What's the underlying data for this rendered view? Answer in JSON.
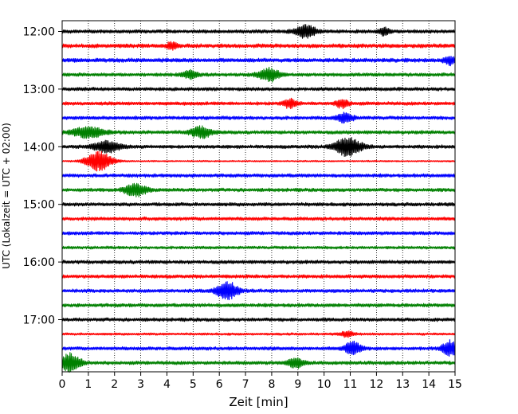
{
  "chart_data": {
    "type": "line",
    "title": "",
    "xlabel": "Zeit  [min]",
    "ylabel": "UTC (Lokalzeit = UTC + 02:00)",
    "xlim": [
      0,
      15
    ],
    "x_ticks": [
      0,
      1,
      2,
      3,
      4,
      5,
      6,
      7,
      8,
      9,
      10,
      11,
      12,
      13,
      14,
      15
    ],
    "y_ticks": [
      {
        "label": "12:00",
        "trace": 0
      },
      {
        "label": "13:00",
        "trace": 4
      },
      {
        "label": "14:00",
        "trace": 8
      },
      {
        "label": "15:00",
        "trace": 12
      },
      {
        "label": "16:00",
        "trace": 16
      },
      {
        "label": "17:00",
        "trace": 20
      }
    ],
    "grid": "vertical-dotted",
    "trace_count": 24,
    "minutes_per_trace": 15,
    "color_cycle": [
      "#000000",
      "#ff0000",
      "#0000ff",
      "#008000"
    ],
    "base_amplitude": [
      0.22,
      0.25,
      0.25,
      0.22,
      0.22,
      0.22,
      0.22,
      0.22,
      0.22,
      0.1,
      0.22,
      0.22,
      0.22,
      0.22,
      0.22,
      0.18,
      0.22,
      0.22,
      0.22,
      0.22,
      0.22,
      0.15,
      0.22,
      0.22
    ],
    "bursts": [
      {
        "trace": 0,
        "x": 9.3,
        "amp": 0.7,
        "width": 0.4
      },
      {
        "trace": 0,
        "x": 12.3,
        "amp": 0.4,
        "width": 0.2
      },
      {
        "trace": 1,
        "x": 4.2,
        "amp": 0.4,
        "width": 0.2
      },
      {
        "trace": 2,
        "x": 14.8,
        "amp": 0.45,
        "width": 0.2
      },
      {
        "trace": 3,
        "x": 7.9,
        "amp": 0.7,
        "width": 0.4
      },
      {
        "trace": 3,
        "x": 4.9,
        "amp": 0.4,
        "width": 0.3
      },
      {
        "trace": 5,
        "x": 8.7,
        "amp": 0.45,
        "width": 0.25
      },
      {
        "trace": 5,
        "x": 10.7,
        "amp": 0.45,
        "width": 0.25
      },
      {
        "trace": 6,
        "x": 10.8,
        "amp": 0.5,
        "width": 0.3
      },
      {
        "trace": 7,
        "x": 1.0,
        "amp": 0.6,
        "width": 0.6
      },
      {
        "trace": 7,
        "x": 5.3,
        "amp": 0.6,
        "width": 0.4
      },
      {
        "trace": 8,
        "x": 1.7,
        "amp": 0.6,
        "width": 0.5
      },
      {
        "trace": 8,
        "x": 10.9,
        "amp": 1.0,
        "width": 0.5
      },
      {
        "trace": 9,
        "x": 1.4,
        "amp": 1.1,
        "width": 0.5
      },
      {
        "trace": 11,
        "x": 2.8,
        "amp": 0.7,
        "width": 0.4
      },
      {
        "trace": 18,
        "x": 6.3,
        "amp": 1.0,
        "width": 0.4
      },
      {
        "trace": 21,
        "x": 10.9,
        "amp": 0.35,
        "width": 0.25
      },
      {
        "trace": 22,
        "x": 11.1,
        "amp": 0.7,
        "width": 0.3
      },
      {
        "trace": 22,
        "x": 14.8,
        "amp": 0.8,
        "width": 0.3
      },
      {
        "trace": 23,
        "x": 0.3,
        "amp": 1.0,
        "width": 0.4
      },
      {
        "trace": 23,
        "x": 8.9,
        "amp": 0.5,
        "width": 0.3
      }
    ],
    "series": [
      {
        "name": "trace-00",
        "start": "12:00",
        "color": "#000000"
      },
      {
        "name": "trace-01",
        "start": "12:15",
        "color": "#ff0000"
      },
      {
        "name": "trace-02",
        "start": "12:30",
        "color": "#0000ff"
      },
      {
        "name": "trace-03",
        "start": "12:45",
        "color": "#008000"
      },
      {
        "name": "trace-04",
        "start": "13:00",
        "color": "#000000"
      },
      {
        "name": "trace-05",
        "start": "13:15",
        "color": "#ff0000"
      },
      {
        "name": "trace-06",
        "start": "13:30",
        "color": "#0000ff"
      },
      {
        "name": "trace-07",
        "start": "13:45",
        "color": "#008000"
      },
      {
        "name": "trace-08",
        "start": "14:00",
        "color": "#000000"
      },
      {
        "name": "trace-09",
        "start": "14:15",
        "color": "#ff0000"
      },
      {
        "name": "trace-10",
        "start": "14:30",
        "color": "#0000ff"
      },
      {
        "name": "trace-11",
        "start": "14:45",
        "color": "#008000"
      },
      {
        "name": "trace-12",
        "start": "15:00",
        "color": "#000000"
      },
      {
        "name": "trace-13",
        "start": "15:15",
        "color": "#ff0000"
      },
      {
        "name": "trace-14",
        "start": "15:30",
        "color": "#0000ff"
      },
      {
        "name": "trace-15",
        "start": "15:45",
        "color": "#008000"
      },
      {
        "name": "trace-16",
        "start": "16:00",
        "color": "#000000"
      },
      {
        "name": "trace-17",
        "start": "16:15",
        "color": "#ff0000"
      },
      {
        "name": "trace-18",
        "start": "16:30",
        "color": "#0000ff"
      },
      {
        "name": "trace-19",
        "start": "16:45",
        "color": "#008000"
      },
      {
        "name": "trace-20",
        "start": "17:00",
        "color": "#000000"
      },
      {
        "name": "trace-21",
        "start": "17:15",
        "color": "#ff0000"
      },
      {
        "name": "trace-22",
        "start": "17:30",
        "color": "#0000ff"
      },
      {
        "name": "trace-23",
        "start": "17:45",
        "color": "#008000"
      }
    ]
  }
}
